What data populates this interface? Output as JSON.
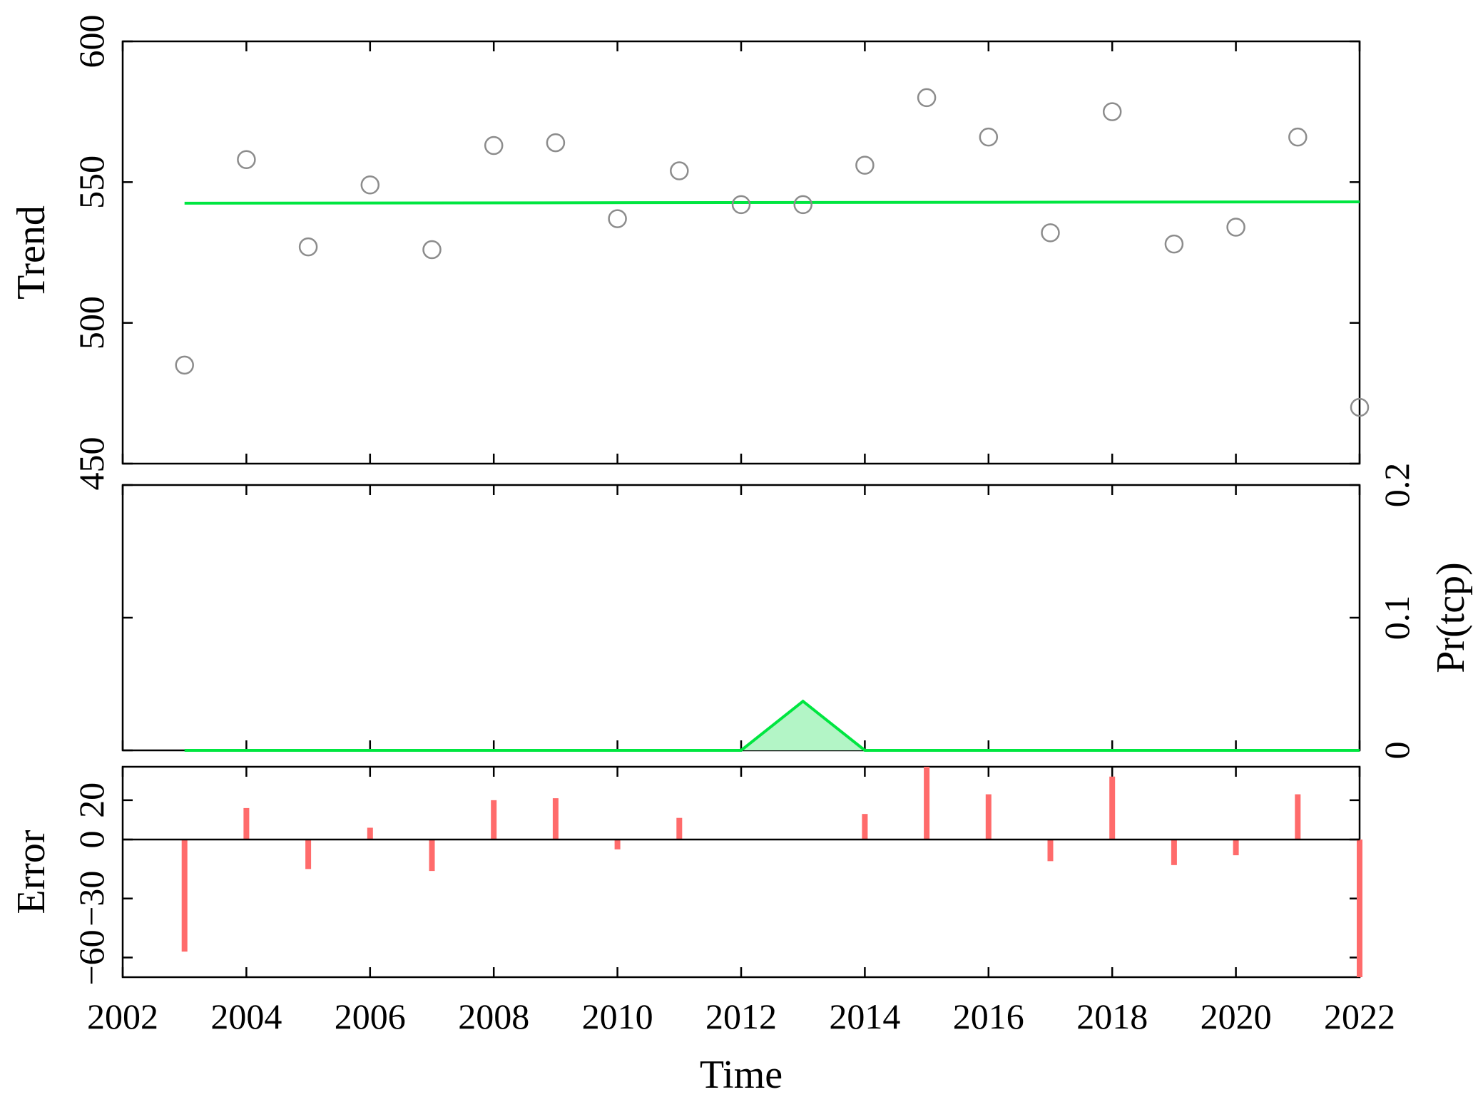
{
  "chart_data": [
    {
      "type": "scatter",
      "panel": "trend",
      "ylabel": "Trend",
      "ylim": [
        450,
        600
      ],
      "yticks": [
        "450",
        "500",
        "550",
        "600"
      ],
      "points": {
        "x": [
          2003,
          2004,
          2005,
          2006,
          2007,
          2008,
          2009,
          2010,
          2011,
          2012,
          2013,
          2014,
          2015,
          2016,
          2017,
          2018,
          2019,
          2020,
          2021,
          2022
        ],
        "y": [
          485,
          558,
          527,
          549,
          526,
          563,
          564,
          537,
          554,
          542,
          542,
          556,
          580,
          566,
          532,
          575,
          528,
          534,
          566,
          470
        ]
      },
      "trend_line": {
        "x": [
          2003,
          2022
        ],
        "y": [
          542.5,
          543
        ]
      },
      "colors": {
        "points": "#8c8c8c",
        "trend": "#00e640"
      }
    },
    {
      "type": "area",
      "panel": "change-point-probability",
      "ylabel": "Pr(tcp)",
      "ylabel_side": "right",
      "ylim": [
        0,
        0.2
      ],
      "yticks": [
        "0",
        "0.1",
        "0.2"
      ],
      "x": [
        2003,
        2012,
        2013,
        2014,
        2022
      ],
      "y": [
        0,
        0,
        0.037,
        0,
        0
      ],
      "colors": {
        "line": "#00e640",
        "fill": "#b3f5c6"
      }
    },
    {
      "type": "bar",
      "panel": "error",
      "ylabel": "Error",
      "ylim": [
        -70,
        37
      ],
      "yticks": [
        "−60",
        "−30",
        "0",
        "20"
      ],
      "yticks_values": [
        -60,
        -30,
        0,
        20
      ],
      "x": [
        2003,
        2004,
        2005,
        2006,
        2007,
        2008,
        2009,
        2010,
        2011,
        2012,
        2013,
        2014,
        2015,
        2016,
        2017,
        2018,
        2019,
        2020,
        2021,
        2022
      ],
      "values": [
        -57,
        16,
        -15,
        6,
        -16,
        20,
        21,
        -5,
        11,
        0,
        0,
        13,
        37,
        23,
        -11,
        32,
        -13,
        -8,
        23,
        -70
      ],
      "colors": {
        "bars": "#ff6b6b",
        "zero_line": "#000000"
      }
    }
  ],
  "x_axis": {
    "label": "Time",
    "range": [
      2002,
      2022
    ],
    "ticks": [
      "2002",
      "2004",
      "2006",
      "2008",
      "2010",
      "2012",
      "2014",
      "2016",
      "2018",
      "2020",
      "2022"
    ]
  }
}
